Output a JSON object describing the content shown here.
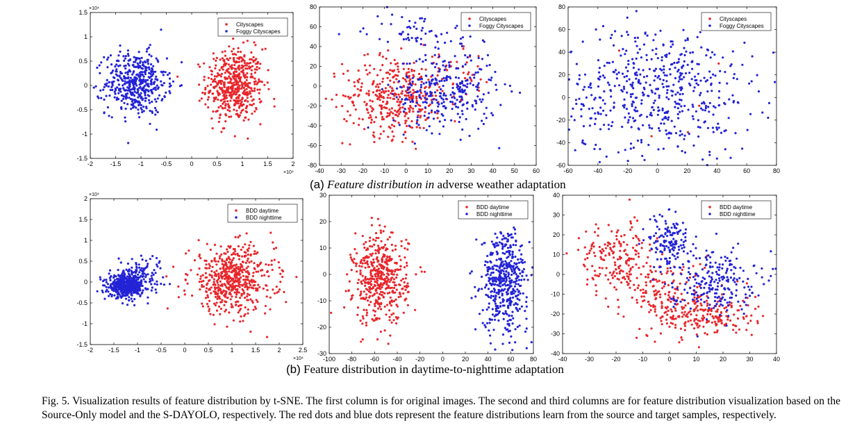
{
  "subcaptions": [
    {
      "prefix": "(a)",
      "italic": "Feature distribution in",
      "rest": " adverse weather adaptation"
    },
    {
      "prefix": "(b)",
      "italic": "",
      "rest": " Feature distribution in daytime-to-nighttime adaptation"
    }
  ],
  "caption": "Fig. 5.    Visualization results of feature distribution by t-SNE. The first column is for original images. The second and third columns are for feature distribution visualization based on the Source-Only model and the S-DAYOLO, respectively. The red dots and blue dots represent the feature distributions learn from the source and target samples, respectively.",
  "colors": {
    "source": "#e8262b",
    "target": "#2323d6"
  },
  "chart_data": [
    {
      "type": "scatter",
      "panel": "a1",
      "xlim": [
        -2,
        2
      ],
      "ylim": [
        -1.5,
        1.5
      ],
      "xticks": [
        "-2",
        "-1.5",
        "-1",
        "-0.5",
        "0",
        "0.5",
        "1",
        "1.5",
        "2"
      ],
      "yticks": [
        "-1.5",
        "-1",
        "-0.5",
        "0",
        "0.5",
        "1",
        "1.5"
      ],
      "xexp": "×10⁴",
      "yexp": "×10⁴",
      "legend_pos": "top-right",
      "series": [
        {
          "name": "Cityscapes",
          "color": "#e8262b",
          "clusters": [
            {
              "cx": 0.85,
              "cy": 0.0,
              "sx": 0.28,
              "sy": 0.38,
              "n": 520
            }
          ]
        },
        {
          "name": "Foggy Cityscapes",
          "color": "#2323d6",
          "clusters": [
            {
              "cx": -1.1,
              "cy": 0.05,
              "sx": 0.3,
              "sy": 0.32,
              "n": 470
            }
          ]
        }
      ]
    },
    {
      "type": "scatter",
      "panel": "a2",
      "xlim": [
        -40,
        60
      ],
      "ylim": [
        -80,
        80
      ],
      "xticks": [
        "-40",
        "-30",
        "-20",
        "-10",
        "0",
        "10",
        "20",
        "30",
        "40",
        "50",
        "60"
      ],
      "yticks": [
        "-80",
        "-60",
        "-40",
        "-20",
        "0",
        "20",
        "40",
        "60",
        "80"
      ],
      "legend_pos": "top-right",
      "series": [
        {
          "name": "Cityscapes",
          "color": "#e8262b",
          "clusters": [
            {
              "cx": -5,
              "cy": -10,
              "sx": 12,
              "sy": 20,
              "n": 380
            },
            {
              "cx": 25,
              "cy": 10,
              "sx": 8,
              "sy": 12,
              "n": 40
            }
          ]
        },
        {
          "name": "Foggy Cityscapes",
          "color": "#2323d6",
          "clusters": [
            {
              "cx": 18,
              "cy": -5,
              "sx": 12,
              "sy": 20,
              "n": 300
            },
            {
              "cx": 5,
              "cy": 55,
              "sx": 12,
              "sy": 10,
              "n": 60
            }
          ]
        }
      ]
    },
    {
      "type": "scatter",
      "panel": "a3",
      "xlim": [
        -60,
        80
      ],
      "ylim": [
        -60,
        80
      ],
      "xticks": [
        "-60",
        "-40",
        "-20",
        "0",
        "20",
        "40",
        "60",
        "80"
      ],
      "yticks": [
        "-60",
        "-40",
        "-20",
        "0",
        "20",
        "40",
        "60",
        "80"
      ],
      "legend_pos": "top-right",
      "series": [
        {
          "name": "Cityscapes",
          "color": "#e8262b",
          "clusters": [
            {
              "cx": 5,
              "cy": 5,
              "sx": 25,
              "sy": 25,
              "n": 5
            }
          ]
        },
        {
          "name": "Foggy Cityscapes",
          "color": "#2323d6",
          "clusters": [
            {
              "cx": 0,
              "cy": 5,
              "sx": 32,
              "sy": 30,
              "n": 560
            }
          ]
        }
      ]
    },
    {
      "type": "scatter",
      "panel": "b1",
      "xlim": [
        -2,
        2.5
      ],
      "ylim": [
        -1.5,
        2
      ],
      "xticks": [
        "-2",
        "-1.5",
        "-1",
        "-0.5",
        "0",
        "0.5",
        "1",
        "1.5",
        "2",
        "2.5"
      ],
      "yticks": [
        "-1.5",
        "-1",
        "-0.5",
        "0",
        "0.5",
        "1",
        "1.5",
        "2"
      ],
      "xexp": "×10⁴",
      "yexp": "×10⁴",
      "legend_pos": "top-right",
      "series": [
        {
          "name": "BDD daytime",
          "color": "#e8262b",
          "clusters": [
            {
              "cx": 1.0,
              "cy": 0.05,
              "sx": 0.45,
              "sy": 0.4,
              "n": 560
            }
          ]
        },
        {
          "name": "BDD nighttime",
          "color": "#2323d6",
          "clusters": [
            {
              "cx": -1.25,
              "cy": -0.1,
              "sx": 0.18,
              "sy": 0.13,
              "n": 470
            },
            {
              "cx": -0.95,
              "cy": 0.2,
              "sx": 0.25,
              "sy": 0.22,
              "n": 120
            }
          ]
        }
      ]
    },
    {
      "type": "scatter",
      "panel": "b2",
      "xlim": [
        -100,
        80
      ],
      "ylim": [
        -30,
        30
      ],
      "xticks": [
        "-100",
        "-80",
        "-60",
        "-40",
        "-20",
        "0",
        "20",
        "40",
        "60",
        "80"
      ],
      "yticks": [
        "-30",
        "-20",
        "-10",
        "0",
        "10",
        "20",
        "30"
      ],
      "legend_pos": "top-right",
      "series": [
        {
          "name": "BDD daytime",
          "color": "#e8262b",
          "clusters": [
            {
              "cx": -55,
              "cy": -2,
              "sx": 12,
              "sy": 8.5,
              "n": 480
            }
          ]
        },
        {
          "name": "BDD nighttime",
          "color": "#2323d6",
          "clusters": [
            {
              "cx": 55,
              "cy": -2,
              "sx": 10,
              "sy": 9.5,
              "n": 480
            }
          ]
        }
      ]
    },
    {
      "type": "scatter",
      "panel": "b3",
      "xlim": [
        -40,
        40
      ],
      "ylim": [
        -40,
        40
      ],
      "xticks": [
        "-40",
        "-30",
        "-20",
        "-10",
        "0",
        "10",
        "20",
        "30",
        "40"
      ],
      "yticks": [
        "-40",
        "-30",
        "-20",
        "-10",
        "0",
        "10",
        "20",
        "30",
        "40"
      ],
      "legend_pos": "top-right",
      "series": [
        {
          "name": "BDD daytime",
          "color": "#e8262b",
          "clusters": [
            {
              "cx": -20,
              "cy": 8,
              "sx": 7,
              "sy": 9,
              "n": 180
            },
            {
              "cx": 12,
              "cy": -20,
              "sx": 10,
              "sy": 6,
              "n": 230
            },
            {
              "cx": -2,
              "cy": -8,
              "sx": 8,
              "sy": 8,
              "n": 120
            }
          ]
        },
        {
          "name": "BDD nighttime",
          "color": "#2323d6",
          "clusters": [
            {
              "cx": 0,
              "cy": 17,
              "sx": 4,
              "sy": 7,
              "n": 140
            },
            {
              "cx": 16,
              "cy": -3,
              "sx": 8,
              "sy": 8,
              "n": 230
            }
          ]
        }
      ]
    }
  ]
}
